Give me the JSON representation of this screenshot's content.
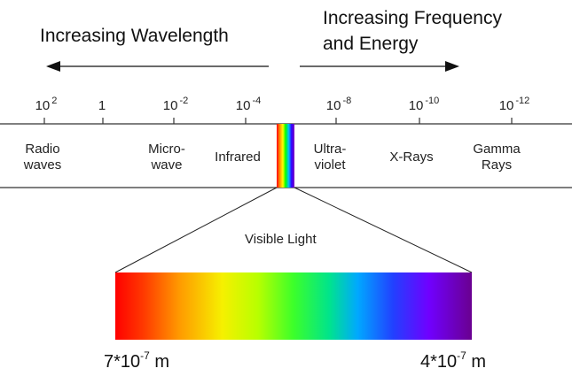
{
  "header": {
    "wavelength_label": "Increasing Wavelength",
    "frequency_label_line1": "Increasing Frequency",
    "frequency_label_line2": "and Energy"
  },
  "scale": {
    "ticks": [
      {
        "base": "10",
        "exp": "2"
      },
      {
        "base": "1",
        "exp": ""
      },
      {
        "base": "10",
        "exp": "-2"
      },
      {
        "base": "10",
        "exp": "-4"
      },
      {
        "base": "10",
        "exp": "-8"
      },
      {
        "base": "10",
        "exp": "-10"
      },
      {
        "base": "10",
        "exp": "-12"
      }
    ]
  },
  "bands": [
    {
      "line1": "Radio",
      "line2": "waves"
    },
    {
      "line1": "Micro-",
      "line2": "wave"
    },
    {
      "line1": "Infrared",
      "line2": ""
    },
    {
      "line1": "Ultra-",
      "line2": "violet"
    },
    {
      "line1": "X-Rays",
      "line2": ""
    },
    {
      "line1": "Gamma",
      "line2": "Rays"
    }
  ],
  "visible": {
    "title": "Visible Light",
    "left_base": "7*10",
    "left_exp": "-7",
    "left_unit": "m",
    "right_base": "4*10",
    "right_exp": "-7",
    "right_unit": "m"
  },
  "colors": {
    "spectrum": [
      "#ff0000",
      "#ff6a00",
      "#ffc400",
      "#f2ff00",
      "#9cff00",
      "#34ff1e",
      "#00e86a",
      "#0099ff",
      "#2a3dff",
      "#6a00ff",
      "#70008c"
    ]
  }
}
